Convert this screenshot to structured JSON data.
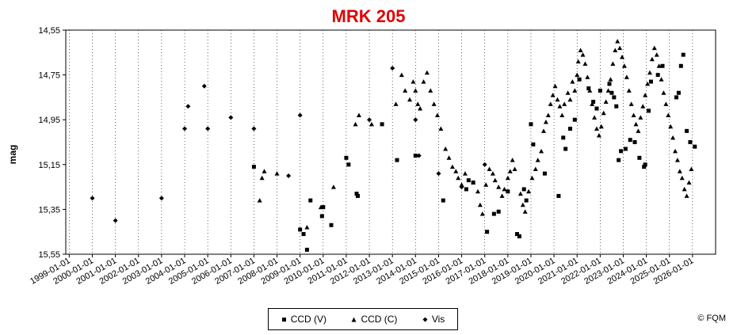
{
  "chart_data": {
    "type": "scatter",
    "title": "MRK 205",
    "ylabel": "mag",
    "xlabel": "",
    "x_tick_labels": [
      "1999-01-01",
      "2000-01-01",
      "2001-01-01",
      "2002-01-01",
      "2003-01-01",
      "2004-01-01",
      "2005-01-01",
      "2006-01-01",
      "2007-01-01",
      "2008-01-01",
      "2009-01-01",
      "2010-01-01",
      "2011-01-01",
      "2012-01-01",
      "2013-01-01",
      "2014-01-01",
      "2015-01-01",
      "2016-01-01",
      "2017-01-01",
      "2018-01-01",
      "2019-01-01",
      "2020-01-01",
      "2021-01-01",
      "2022-01-01",
      "2023-01-01",
      "2024-01-01",
      "2025-01-01",
      "2026-01-01"
    ],
    "y_tick_labels": [
      "14,55",
      "14,75",
      "14,95",
      "15,15",
      "15,35",
      "15,55"
    ],
    "xlim": [
      1998.85,
      2027.0
    ],
    "ylim": [
      15.55,
      14.55
    ],
    "y_inverted": true,
    "grid": "vertical",
    "legend_position": "bottom",
    "copyright": "© FQM",
    "series": [
      {
        "name": "CCD (V)",
        "marker": "square",
        "x": [
          2007.0,
          2009.0,
          2009.15,
          2009.3,
          2009.45,
          2009.95,
          2010.0,
          2010.35,
          2011.0,
          2011.1,
          2011.45,
          2011.5,
          2012.55,
          2013.2,
          2014.0,
          2015.2,
          2016.2,
          2016.3,
          2016.5,
          2017.1,
          2017.4,
          2017.6,
          2018.0,
          2018.4,
          2018.5,
          2018.7,
          2018.8,
          2019.0,
          2019.1,
          2019.6,
          2020.2,
          2020.4,
          2020.5,
          2020.7,
          2020.9,
          2021.1,
          2021.5,
          2021.7,
          2021.85,
          2022.0,
          2022.4,
          2022.5,
          2022.6,
          2022.7,
          2022.8,
          2022.9,
          2023.1,
          2023.3,
          2023.5,
          2023.7,
          2023.9,
          2023.95,
          2024.1,
          2024.2,
          2024.5,
          2024.7,
          2025.3,
          2025.4,
          2025.5,
          2025.6,
          2025.75,
          2025.9,
          2026.1
        ],
        "y": [
          15.16,
          15.44,
          15.46,
          15.53,
          15.31,
          15.38,
          15.34,
          15.42,
          15.12,
          15.15,
          15.28,
          15.29,
          14.97,
          15.13,
          15.11,
          15.31,
          15.26,
          15.22,
          15.23,
          15.45,
          15.37,
          15.36,
          15.27,
          15.46,
          15.47,
          15.26,
          15.31,
          14.97,
          15.06,
          15.19,
          15.29,
          15.03,
          15.08,
          14.99,
          14.95,
          14.77,
          14.81,
          14.87,
          14.9,
          14.82,
          14.79,
          14.83,
          14.85,
          14.89,
          15.13,
          15.09,
          15.08,
          15.04,
          15.05,
          15.12,
          15.16,
          15.15,
          14.91,
          14.78,
          14.75,
          14.71,
          14.85,
          14.83,
          14.71,
          14.66,
          15.0,
          15.05,
          15.07
        ]
      },
      {
        "name": "CCD (C)",
        "marker": "triangle",
        "x": [
          2007.25,
          2007.35,
          2007.45,
          2008.0,
          2009.3,
          2009.9,
          2010.45,
          2011.4,
          2011.55,
          2012.1,
          2013.15,
          2013.4,
          2013.55,
          2013.75,
          2013.9,
          2014.0,
          2014.1,
          2014.2,
          2014.35,
          2014.5,
          2014.65,
          2014.8,
          2014.95,
          2015.1,
          2015.3,
          2015.45,
          2015.6,
          2015.75,
          2015.85,
          2016.0,
          2016.15,
          2016.5,
          2016.7,
          2016.8,
          2016.9,
          2017.05,
          2017.2,
          2017.35,
          2017.45,
          2017.6,
          2017.75,
          2017.85,
          2018.0,
          2018.1,
          2018.2,
          2018.3,
          2018.55,
          2018.65,
          2018.75,
          2018.9,
          2019.05,
          2019.2,
          2019.3,
          2019.45,
          2019.55,
          2019.65,
          2019.75,
          2019.85,
          2019.95,
          2020.05,
          2020.15,
          2020.25,
          2020.35,
          2020.45,
          2020.6,
          2020.7,
          2020.8,
          2020.9,
          2021.0,
          2021.05,
          2021.15,
          2021.25,
          2021.35,
          2021.45,
          2021.55,
          2021.65,
          2021.75,
          2021.85,
          2021.95,
          2022.05,
          2022.15,
          2022.25,
          2022.35,
          2022.45,
          2022.55,
          2022.65,
          2022.75,
          2022.85,
          2022.95,
          2023.05,
          2023.15,
          2023.25,
          2023.35,
          2023.45,
          2023.55,
          2023.65,
          2023.75,
          2023.85,
          2023.95,
          2024.05,
          2024.15,
          2024.25,
          2024.35,
          2024.45,
          2024.55,
          2024.65,
          2024.75,
          2024.85,
          2024.95,
          2025.05,
          2025.15,
          2025.25,
          2025.35,
          2025.45,
          2025.55,
          2025.65,
          2025.75,
          2025.85,
          2025.95
        ],
        "y": [
          15.31,
          15.21,
          15.18,
          15.19,
          15.43,
          15.34,
          15.25,
          14.97,
          14.93,
          14.97,
          14.88,
          14.75,
          14.82,
          14.86,
          14.78,
          14.82,
          14.88,
          14.9,
          14.78,
          14.74,
          14.82,
          14.88,
          14.93,
          14.99,
          15.08,
          15.12,
          15.16,
          15.18,
          15.21,
          15.24,
          15.19,
          15.23,
          15.27,
          15.33,
          15.37,
          15.24,
          15.17,
          15.19,
          15.22,
          15.25,
          15.29,
          15.26,
          15.21,
          15.18,
          15.13,
          15.17,
          15.28,
          15.33,
          15.36,
          15.27,
          15.21,
          15.17,
          15.13,
          15.09,
          15.0,
          14.96,
          14.93,
          14.88,
          14.84,
          14.8,
          14.86,
          14.89,
          14.93,
          14.88,
          14.83,
          14.86,
          14.78,
          14.82,
          14.75,
          14.69,
          14.64,
          14.66,
          14.7,
          14.76,
          14.82,
          14.88,
          14.94,
          14.99,
          15.02,
          14.98,
          14.92,
          14.87,
          14.82,
          14.77,
          14.7,
          14.64,
          14.6,
          14.63,
          14.67,
          14.71,
          14.76,
          14.82,
          14.88,
          14.93,
          14.97,
          15.0,
          14.94,
          14.89,
          14.84,
          14.79,
          14.74,
          14.68,
          14.63,
          14.66,
          14.71,
          14.77,
          14.83,
          14.88,
          14.93,
          14.98,
          15.03,
          15.09,
          15.13,
          15.18,
          15.21,
          15.26,
          15.29,
          15.23,
          15.17
        ]
      },
      {
        "name": "Vis",
        "marker": "diamond",
        "x": [
          2000.0,
          2001.0,
          2003.0,
          2004.0,
          2004.15,
          2004.85,
          2005.0,
          2006.0,
          2007.0,
          2008.5,
          2009.0,
          2012.0,
          2013.0,
          2014.0,
          2014.15,
          2015.0,
          2016.0,
          2017.0
        ],
        "y": [
          15.3,
          15.4,
          15.3,
          14.99,
          14.89,
          14.8,
          14.99,
          14.94,
          14.99,
          15.2,
          14.93,
          14.95,
          14.72,
          14.95,
          15.11,
          15.19,
          15.25,
          15.15
        ]
      }
    ]
  }
}
